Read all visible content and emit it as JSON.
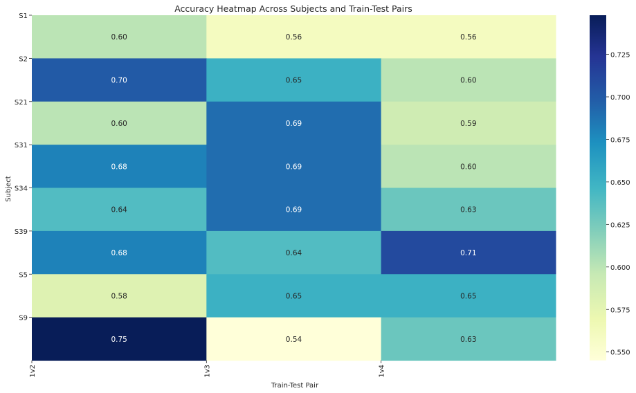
{
  "chart_data": {
    "type": "heatmap",
    "title": "Accuracy Heatmap Across Subjects and Train-Test Pairs",
    "xlabel": "Train-Test Pair",
    "ylabel": "Subject",
    "x_categories": [
      "1v2",
      "1v3",
      "1v4"
    ],
    "y_categories": [
      "S1",
      "S2",
      "S21",
      "S31",
      "S34",
      "S39",
      "S5",
      "S9"
    ],
    "values": [
      [
        0.6,
        0.56,
        0.56
      ],
      [
        0.7,
        0.65,
        0.6
      ],
      [
        0.6,
        0.69,
        0.59
      ],
      [
        0.68,
        0.69,
        0.6
      ],
      [
        0.64,
        0.69,
        0.63
      ],
      [
        0.68,
        0.64,
        0.71
      ],
      [
        0.58,
        0.65,
        0.65
      ],
      [
        0.75,
        0.54,
        0.63
      ]
    ],
    "annotations": [
      [
        "0.60",
        "0.56",
        "0.56"
      ],
      [
        "0.70",
        "0.65",
        "0.60"
      ],
      [
        "0.60",
        "0.69",
        "0.59"
      ],
      [
        "0.68",
        "0.69",
        "0.60"
      ],
      [
        "0.64",
        "0.69",
        "0.63"
      ],
      [
        "0.68",
        "0.64",
        "0.71"
      ],
      [
        "0.58",
        "0.65",
        "0.65"
      ],
      [
        "0.75",
        "0.54",
        "0.63"
      ]
    ],
    "colormap": "YlGnBu",
    "colorbar": {
      "range": [
        0.545,
        0.748
      ],
      "ticks": [
        "0.550",
        "0.575",
        "0.600",
        "0.625",
        "0.650",
        "0.675",
        "0.700",
        "0.725"
      ]
    },
    "grid": false,
    "legend": "colorbar-right"
  }
}
